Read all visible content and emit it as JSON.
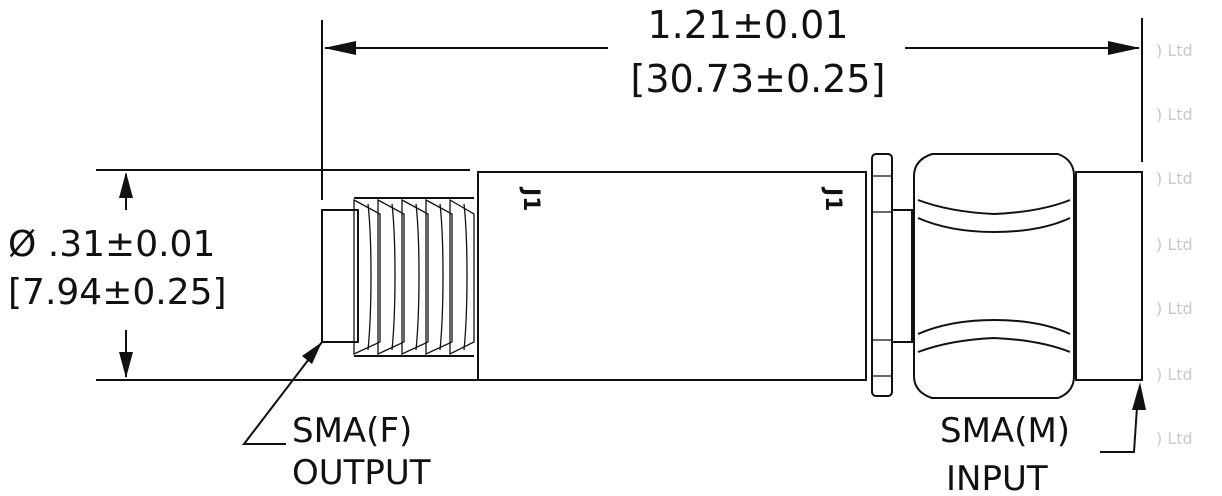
{
  "dimensions": {
    "length_in": "1.21±0.01",
    "length_mm": "[30.73±0.25]",
    "diameter_in": "Ø .31±0.01",
    "diameter_mm": "[7.94±0.25]"
  },
  "callouts": {
    "output_connector": "SMA(F)",
    "output_label": "OUTPUT",
    "input_connector": "SMA(M)",
    "input_label": "INPUT"
  },
  "body_marks": [
    "J1",
    "J1"
  ],
  "watermark": ") Ltd"
}
